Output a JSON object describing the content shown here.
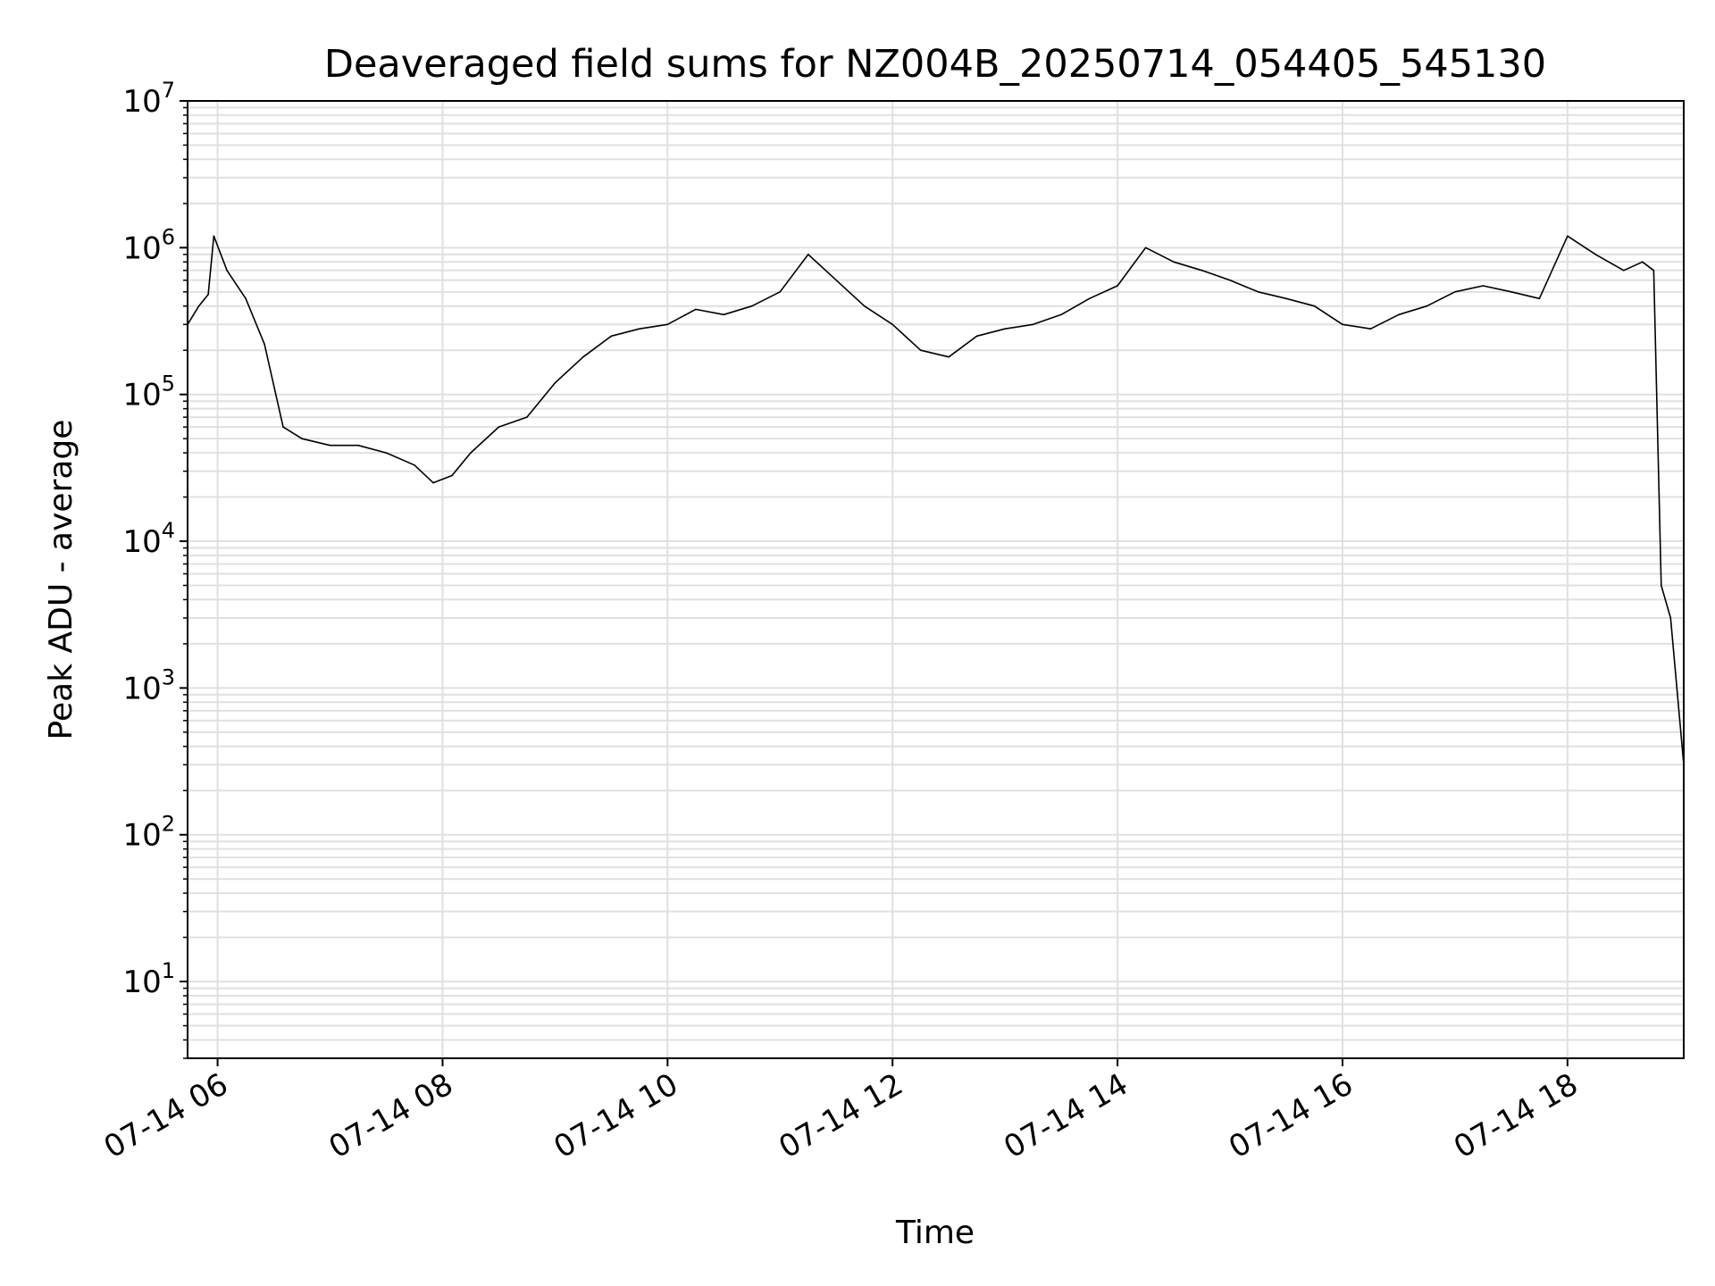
{
  "chart_data": {
    "type": "line",
    "title": "Deaveraged field sums for NZ004B_20250714_054405_545130",
    "xlabel": "Time",
    "ylabel": "Peak ADU - average",
    "yscale": "log",
    "grid": true,
    "xlim": [
      "2025-07-14 05:44",
      "2025-07-14 19:02"
    ],
    "ylim": [
      3,
      10000000
    ],
    "x_ticks": [
      {
        "label": "07-14 06",
        "value": "2025-07-14 06:00"
      },
      {
        "label": "07-14 08",
        "value": "2025-07-14 08:00"
      },
      {
        "label": "07-14 10",
        "value": "2025-07-14 10:00"
      },
      {
        "label": "07-14 12",
        "value": "2025-07-14 12:00"
      },
      {
        "label": "07-14 14",
        "value": "2025-07-14 14:00"
      },
      {
        "label": "07-14 16",
        "value": "2025-07-14 16:00"
      },
      {
        "label": "07-14 18",
        "value": "2025-07-14 18:00"
      }
    ],
    "y_ticks": [
      {
        "base": "10",
        "exp": "1",
        "value": 10
      },
      {
        "base": "10",
        "exp": "2",
        "value": 100
      },
      {
        "base": "10",
        "exp": "3",
        "value": 1000
      },
      {
        "base": "10",
        "exp": "4",
        "value": 10000
      },
      {
        "base": "10",
        "exp": "5",
        "value": 100000
      },
      {
        "base": "10",
        "exp": "6",
        "value": 1000000
      },
      {
        "base": "10",
        "exp": "7",
        "value": 10000000
      }
    ],
    "line_color": "#000000",
    "grid_color": "#e0e0e0",
    "series": [
      {
        "x": [
          "2025-07-14 05:44",
          "2025-07-14 05:50",
          "2025-07-14 05:55",
          "2025-07-14 05:58",
          "2025-07-14 06:05",
          "2025-07-14 06:15",
          "2025-07-14 06:25",
          "2025-07-14 06:35",
          "2025-07-14 06:45",
          "2025-07-14 07:00",
          "2025-07-14 07:15",
          "2025-07-14 07:30",
          "2025-07-14 07:45",
          "2025-07-14 07:55",
          "2025-07-14 08:05",
          "2025-07-14 08:15",
          "2025-07-14 08:30",
          "2025-07-14 08:45",
          "2025-07-14 09:00",
          "2025-07-14 09:15",
          "2025-07-14 09:30",
          "2025-07-14 09:45",
          "2025-07-14 10:00",
          "2025-07-14 10:15",
          "2025-07-14 10:30",
          "2025-07-14 10:45",
          "2025-07-14 11:00",
          "2025-07-14 11:15",
          "2025-07-14 11:30",
          "2025-07-14 11:45",
          "2025-07-14 12:00",
          "2025-07-14 12:15",
          "2025-07-14 12:30",
          "2025-07-14 12:45",
          "2025-07-14 13:00",
          "2025-07-14 13:15",
          "2025-07-14 13:30",
          "2025-07-14 13:45",
          "2025-07-14 14:00",
          "2025-07-14 14:15",
          "2025-07-14 14:30",
          "2025-07-14 14:45",
          "2025-07-14 15:00",
          "2025-07-14 15:15",
          "2025-07-14 15:30",
          "2025-07-14 15:45",
          "2025-07-14 16:00",
          "2025-07-14 16:15",
          "2025-07-14 16:30",
          "2025-07-14 16:45",
          "2025-07-14 17:00",
          "2025-07-14 17:15",
          "2025-07-14 17:30",
          "2025-07-14 17:45",
          "2025-07-14 18:00",
          "2025-07-14 18:15",
          "2025-07-14 18:30",
          "2025-07-14 18:40",
          "2025-07-14 18:46",
          "2025-07-14 18:50",
          "2025-07-14 18:55",
          "2025-07-14 19:02"
        ],
        "y": [
          300000,
          400000,
          480000,
          1200000,
          700000,
          450000,
          220000,
          60000,
          50000,
          45000,
          45000,
          40000,
          33000,
          25000,
          28000,
          40000,
          60000,
          70000,
          120000,
          180000,
          250000,
          280000,
          300000,
          380000,
          350000,
          400000,
          500000,
          900000,
          600000,
          400000,
          300000,
          200000,
          180000,
          250000,
          280000,
          300000,
          350000,
          450000,
          550000,
          1000000,
          800000,
          700000,
          600000,
          500000,
          450000,
          400000,
          300000,
          280000,
          350000,
          400000,
          500000,
          550000,
          500000,
          450000,
          1200000,
          900000,
          700000,
          800000,
          700000,
          5000,
          3000,
          300
        ]
      }
    ]
  }
}
